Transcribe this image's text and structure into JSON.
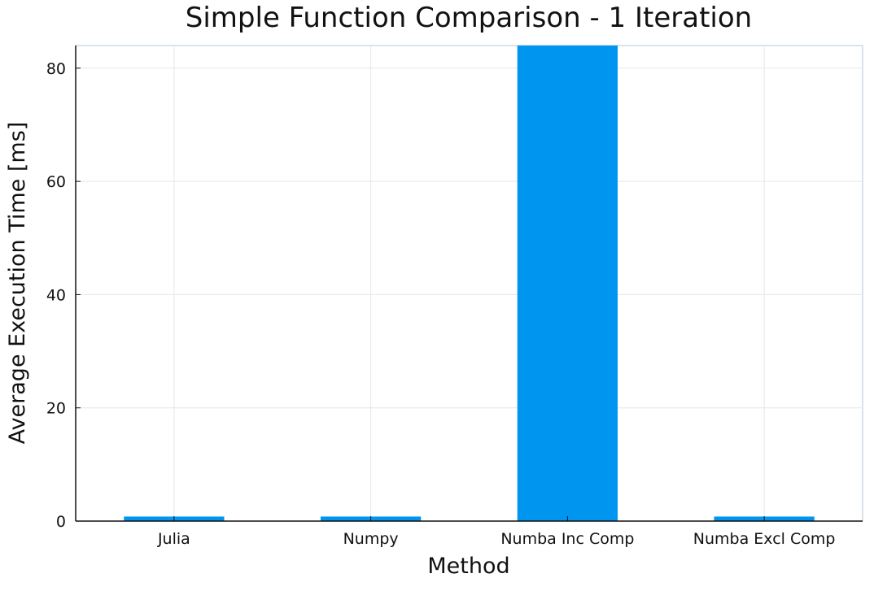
{
  "chart_data": {
    "type": "bar",
    "title": "Simple Function Comparison - 1 Iteration",
    "xlabel": "Method",
    "ylabel": "Average Execution Time [ms]",
    "categories": [
      "Julia",
      "Numpy",
      "Numba Inc Comp",
      "Numba Excl Comp"
    ],
    "values": [
      0.8,
      0.8,
      90,
      0.8
    ],
    "ylim": [
      0,
      84
    ],
    "yticks": [
      0,
      20,
      40,
      60,
      80
    ],
    "ytick_labels": [
      "0",
      "20",
      "40",
      "60",
      "80"
    ],
    "grid": true,
    "legend": "none",
    "colors": {
      "bar": "#0096f0",
      "grid": "#e6e6e6",
      "axis": "#111111",
      "frame": "#b7c7d6"
    }
  }
}
